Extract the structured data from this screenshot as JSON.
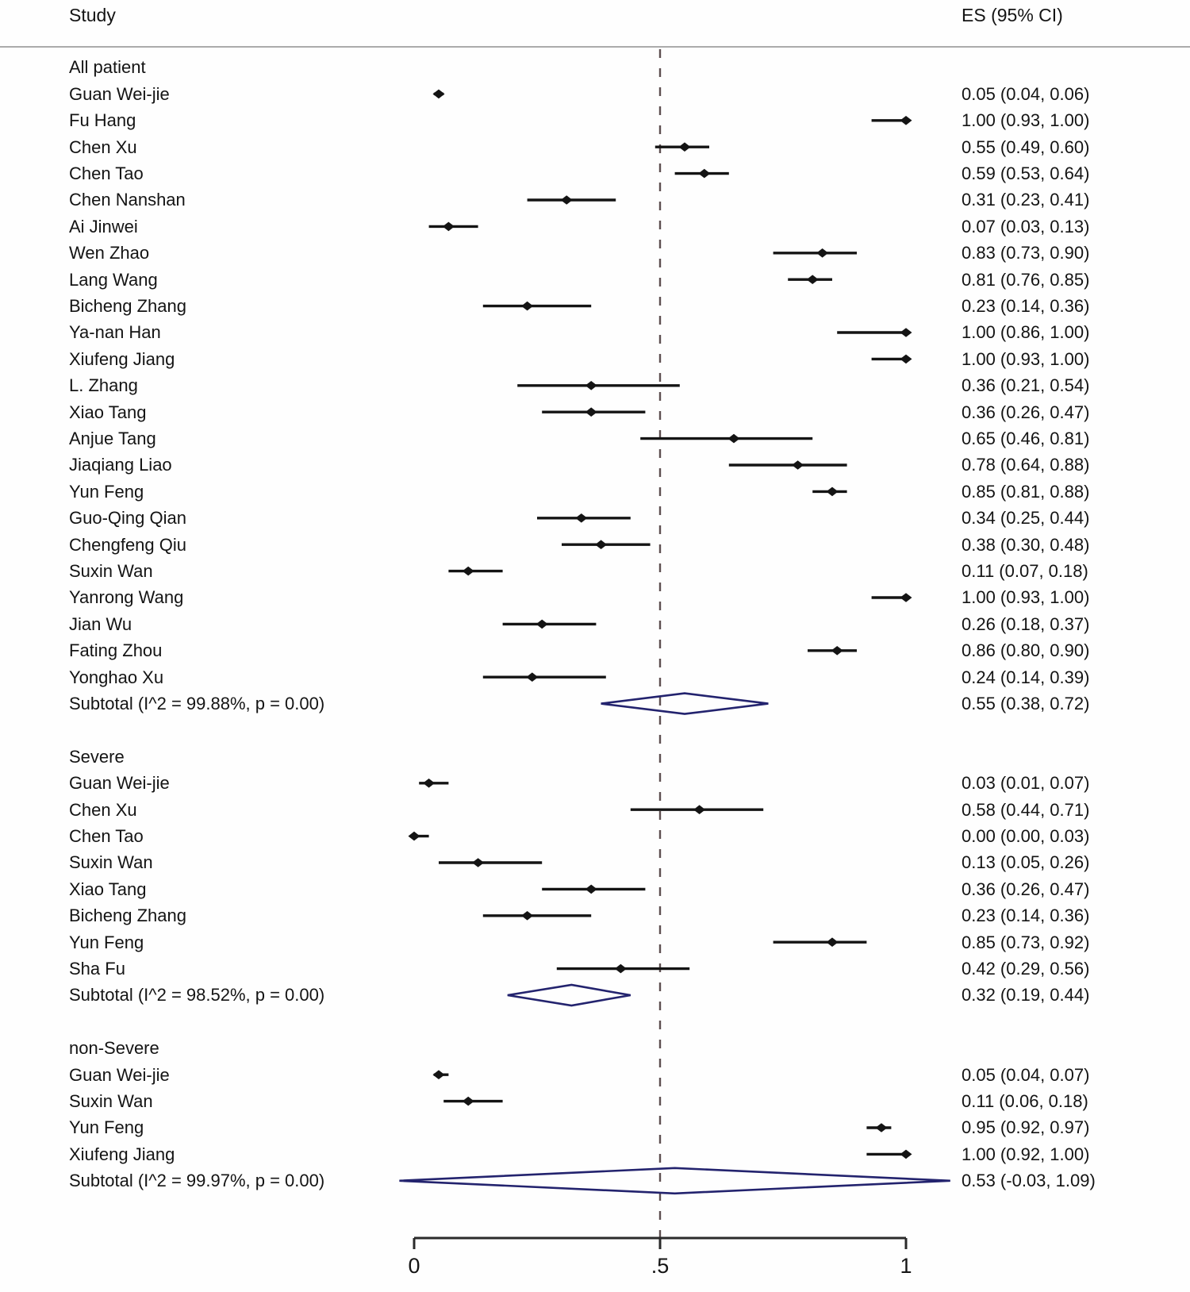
{
  "header": {
    "study_col": "Study",
    "es_col": "ES (95% CI)"
  },
  "axis": {
    "ticks": [
      {
        "value": 0,
        "label": "0"
      },
      {
        "value": 0.5,
        "label": ".5"
      },
      {
        "value": 1,
        "label": "1"
      }
    ],
    "ref_line": 0.5,
    "range": [
      0,
      1
    ]
  },
  "colors": {
    "marker": "#141414",
    "ci_line": "#141414",
    "diamond": "#23236e",
    "ref_line": "#5d4f50",
    "axis": "#2a2a2a",
    "rule": "#ababab",
    "text": "#141414"
  },
  "chart_data": {
    "type": "forest",
    "title": "",
    "xlabel": "",
    "legend": "none",
    "xlim": [
      0,
      1
    ],
    "groups": [
      {
        "name": "All patient",
        "studies": [
          {
            "study": "Guan Wei-jie",
            "es": 0.05,
            "ci_low": 0.04,
            "ci_high": 0.06,
            "es_label": "0.05 (0.04, 0.06)"
          },
          {
            "study": "Fu Hang",
            "es": 1.0,
            "ci_low": 0.93,
            "ci_high": 1.0,
            "es_label": "1.00 (0.93, 1.00)"
          },
          {
            "study": "Chen Xu",
            "es": 0.55,
            "ci_low": 0.49,
            "ci_high": 0.6,
            "es_label": "0.55 (0.49, 0.60)"
          },
          {
            "study": "Chen Tao",
            "es": 0.59,
            "ci_low": 0.53,
            "ci_high": 0.64,
            "es_label": "0.59 (0.53, 0.64)"
          },
          {
            "study": "Chen Nanshan",
            "es": 0.31,
            "ci_low": 0.23,
            "ci_high": 0.41,
            "es_label": "0.31 (0.23, 0.41)"
          },
          {
            "study": "Ai Jinwei",
            "es": 0.07,
            "ci_low": 0.03,
            "ci_high": 0.13,
            "es_label": "0.07 (0.03, 0.13)"
          },
          {
            "study": "Wen Zhao",
            "es": 0.83,
            "ci_low": 0.73,
            "ci_high": 0.9,
            "es_label": "0.83 (0.73, 0.90)"
          },
          {
            "study": "Lang Wang",
            "es": 0.81,
            "ci_low": 0.76,
            "ci_high": 0.85,
            "es_label": "0.81 (0.76, 0.85)"
          },
          {
            "study": "Bicheng Zhang",
            "es": 0.23,
            "ci_low": 0.14,
            "ci_high": 0.36,
            "es_label": "0.23 (0.14, 0.36)"
          },
          {
            "study": "Ya-nan Han",
            "es": 1.0,
            "ci_low": 0.86,
            "ci_high": 1.0,
            "es_label": "1.00 (0.86, 1.00)"
          },
          {
            "study": "Xiufeng Jiang",
            "es": 1.0,
            "ci_low": 0.93,
            "ci_high": 1.0,
            "es_label": "1.00 (0.93, 1.00)"
          },
          {
            "study": "L. Zhang",
            "es": 0.36,
            "ci_low": 0.21,
            "ci_high": 0.54,
            "es_label": "0.36 (0.21, 0.54)"
          },
          {
            "study": "Xiao Tang",
            "es": 0.36,
            "ci_low": 0.26,
            "ci_high": 0.47,
            "es_label": "0.36 (0.26, 0.47)"
          },
          {
            "study": "Anjue Tang",
            "es": 0.65,
            "ci_low": 0.46,
            "ci_high": 0.81,
            "es_label": "0.65 (0.46, 0.81)"
          },
          {
            "study": "Jiaqiang Liao",
            "es": 0.78,
            "ci_low": 0.64,
            "ci_high": 0.88,
            "es_label": "0.78 (0.64, 0.88)"
          },
          {
            "study": "Yun Feng",
            "es": 0.85,
            "ci_low": 0.81,
            "ci_high": 0.88,
            "es_label": "0.85 (0.81, 0.88)"
          },
          {
            "study": "Guo-Qing Qian",
            "es": 0.34,
            "ci_low": 0.25,
            "ci_high": 0.44,
            "es_label": "0.34 (0.25, 0.44)"
          },
          {
            "study": "Chengfeng Qiu",
            "es": 0.38,
            "ci_low": 0.3,
            "ci_high": 0.48,
            "es_label": "0.38 (0.30, 0.48)"
          },
          {
            "study": "Suxin Wan",
            "es": 0.11,
            "ci_low": 0.07,
            "ci_high": 0.18,
            "es_label": "0.11 (0.07, 0.18)"
          },
          {
            "study": "Yanrong Wang",
            "es": 1.0,
            "ci_low": 0.93,
            "ci_high": 1.0,
            "es_label": "1.00 (0.93, 1.00)"
          },
          {
            "study": "Jian Wu",
            "es": 0.26,
            "ci_low": 0.18,
            "ci_high": 0.37,
            "es_label": "0.26 (0.18, 0.37)"
          },
          {
            "study": "Fating Zhou",
            "es": 0.86,
            "ci_low": 0.8,
            "ci_high": 0.9,
            "es_label": "0.86 (0.80, 0.90)"
          },
          {
            "study": "Yonghao Xu",
            "es": 0.24,
            "ci_low": 0.14,
            "ci_high": 0.39,
            "es_label": "0.24 (0.14, 0.39)"
          }
        ],
        "subtotal": {
          "label": "Subtotal  (I^2 = 99.88%, p = 0.00)",
          "es": 0.55,
          "ci_low": 0.38,
          "ci_high": 0.72,
          "es_label": "0.55 (0.38, 0.72)"
        }
      },
      {
        "name": "Severe",
        "studies": [
          {
            "study": "Guan Wei-jie",
            "es": 0.03,
            "ci_low": 0.01,
            "ci_high": 0.07,
            "es_label": "0.03 (0.01, 0.07)"
          },
          {
            "study": "Chen Xu",
            "es": 0.58,
            "ci_low": 0.44,
            "ci_high": 0.71,
            "es_label": "0.58 (0.44, 0.71)"
          },
          {
            "study": "Chen Tao",
            "es": 0.0,
            "ci_low": 0.0,
            "ci_high": 0.03,
            "es_label": "0.00 (0.00, 0.03)"
          },
          {
            "study": "Suxin Wan",
            "es": 0.13,
            "ci_low": 0.05,
            "ci_high": 0.26,
            "es_label": "0.13 (0.05, 0.26)"
          },
          {
            "study": "Xiao Tang",
            "es": 0.36,
            "ci_low": 0.26,
            "ci_high": 0.47,
            "es_label": "0.36 (0.26, 0.47)"
          },
          {
            "study": "Bicheng Zhang",
            "es": 0.23,
            "ci_low": 0.14,
            "ci_high": 0.36,
            "es_label": "0.23 (0.14, 0.36)"
          },
          {
            "study": "Yun Feng",
            "es": 0.85,
            "ci_low": 0.73,
            "ci_high": 0.92,
            "es_label": "0.85 (0.73, 0.92)"
          },
          {
            "study": "Sha Fu",
            "es": 0.42,
            "ci_low": 0.29,
            "ci_high": 0.56,
            "es_label": "0.42 (0.29, 0.56)"
          }
        ],
        "subtotal": {
          "label": "Subtotal  (I^2 = 98.52%, p = 0.00)",
          "es": 0.32,
          "ci_low": 0.19,
          "ci_high": 0.44,
          "es_label": "0.32 (0.19, 0.44)"
        }
      },
      {
        "name": "non-Severe",
        "studies": [
          {
            "study": "Guan Wei-jie",
            "es": 0.05,
            "ci_low": 0.04,
            "ci_high": 0.07,
            "es_label": "0.05 (0.04, 0.07)"
          },
          {
            "study": "Suxin Wan",
            "es": 0.11,
            "ci_low": 0.06,
            "ci_high": 0.18,
            "es_label": "0.11 (0.06, 0.18)"
          },
          {
            "study": "Yun Feng",
            "es": 0.95,
            "ci_low": 0.92,
            "ci_high": 0.97,
            "es_label": "0.95 (0.92, 0.97)"
          },
          {
            "study": "Xiufeng Jiang",
            "es": 1.0,
            "ci_low": 0.92,
            "ci_high": 1.0,
            "es_label": "1.00 (0.92, 1.00)"
          }
        ],
        "subtotal": {
          "label": "Subtotal  (I^2 = 99.97%, p = 0.00)",
          "es": 0.53,
          "ci_low": -0.03,
          "ci_high": 1.09,
          "es_label": "0.53 (-0.03, 1.09)"
        }
      }
    ]
  }
}
